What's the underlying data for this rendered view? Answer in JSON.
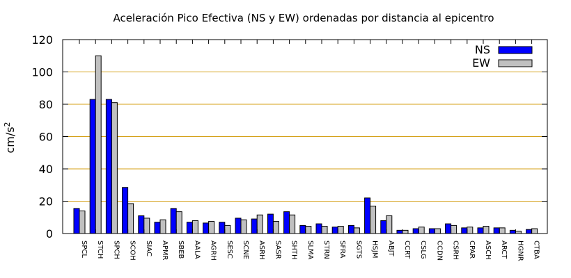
{
  "chart_data": {
    "type": "bar",
    "title": "Aceleración Pico Efectiva (NS y EW) ordenadas por distancia al epicentro",
    "ylabel_base": "cm/s",
    "ylabel_sup": "2",
    "ylim": [
      0,
      120
    ],
    "yticks": [
      "0",
      "20",
      "40",
      "60",
      "80",
      "100",
      "120"
    ],
    "grid": "horizontal",
    "legend_position": "top-right",
    "categories": [
      "SPCL",
      "STCH",
      "SPCH",
      "SCOH",
      "SIAC",
      "APMR",
      "SBEB",
      "AALA",
      "AGRH",
      "SESC",
      "SCNE",
      "ASRH",
      "SASR",
      "SHTH",
      "SLMA",
      "STRN",
      "SFRA",
      "SGTS",
      "HSJM",
      "ABJT",
      "CCRT",
      "CSLG",
      "CCDN",
      "CSRH",
      "CPAR",
      "ASCH",
      "ARCT",
      "HGNR",
      "CTBA"
    ],
    "series": [
      {
        "name": "NS",
        "color": "#0000ff",
        "values": [
          15.5,
          83,
          83,
          28.5,
          11,
          7,
          15.5,
          7,
          6.5,
          7,
          9.5,
          9,
          12,
          13.5,
          5,
          6,
          4,
          5,
          22,
          8,
          2,
          3,
          3,
          6,
          3.5,
          3.5,
          3.5,
          2,
          2.5
        ]
      },
      {
        "name": "EW",
        "color": "#c0c0c0",
        "values": [
          14,
          110,
          81,
          18.5,
          9.5,
          8.5,
          13.5,
          8,
          7.5,
          5,
          8.5,
          11.5,
          7.5,
          11.5,
          4.5,
          4.5,
          4.5,
          3.5,
          17,
          11,
          2,
          4,
          3,
          5,
          4,
          4.5,
          3.5,
          1.5,
          3
        ]
      }
    ]
  }
}
